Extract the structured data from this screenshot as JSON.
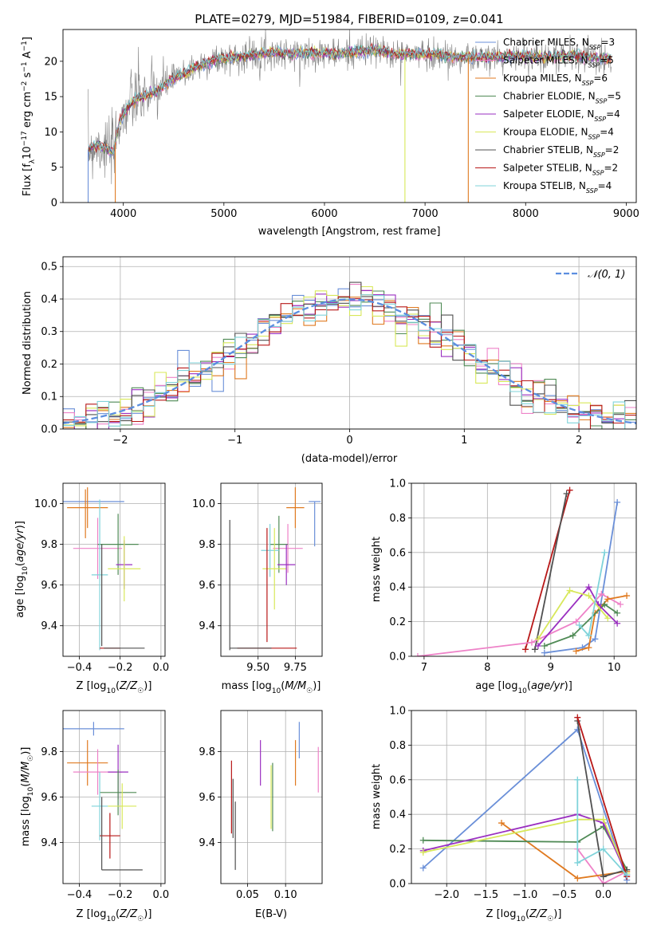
{
  "colors": {
    "Chabrier MILES": "#6a8fd8",
    "Salpeter MILES": "#ee82c8",
    "Kroupa MILES": "#e07a20",
    "Chabrier ELODIE": "#4f8a55",
    "Salpeter ELODIE": "#9a2fc0",
    "Kroupa ELODIE": "#d8e85a",
    "Chabrier STELIB": "#505050",
    "Salpeter STELIB": "#b81818",
    "Kroupa STELIB": "#7fd3da",
    "normal": "#5b8ee0"
  },
  "chart_data": [
    {
      "id": "spectrum",
      "type": "line",
      "title": "PLATE=0279, MJD=51984, FIBERID=0109, z=0.041",
      "xlabel": "wavelength [Angstrom, rest frame]",
      "ylabel": "Flux [f_λ10^-17 erg cm^-2 s^-1 A^-1]",
      "xlim": [
        3400,
        9100
      ],
      "ylim": [
        0,
        24.5
      ],
      "xticks": [
        "4000",
        "5000",
        "6000",
        "7000",
        "8000",
        "9000"
      ],
      "yticks": [
        "0",
        "5",
        "10",
        "15",
        "20"
      ],
      "legend_position": "right",
      "legend": [
        {
          "model": "Chabrier MILES",
          "label": "Chabrier MILES, N",
          "n": "=3"
        },
        {
          "model": "Salpeter MILES",
          "label": "Salpeter MILES, N",
          "n": "=5"
        },
        {
          "model": "Kroupa MILES",
          "label": "Kroupa MILES, N",
          "n": "=6"
        },
        {
          "model": "Chabrier ELODIE",
          "label": "Chabrier ELODIE, N",
          "n": "=5"
        },
        {
          "model": "Salpeter ELODIE",
          "label": "Salpeter ELODIE, N",
          "n": "=4"
        },
        {
          "model": "Kroupa ELODIE",
          "label": "Kroupa ELODIE, N",
          "n": "=4"
        },
        {
          "model": "Chabrier STELIB",
          "label": "Chabrier STELIB, N",
          "n": "=2"
        },
        {
          "model": "Salpeter STELIB",
          "label": "Salpeter STELIB, N",
          "n": "=2"
        },
        {
          "model": "Kroupa STELIB",
          "label": "Kroupa STELIB, N",
          "n": "=4"
        }
      ],
      "legend_subscript": "SSP",
      "continuum": [
        [
          3650,
          7.5
        ],
        [
          3750,
          8.2
        ],
        [
          3900,
          7.0
        ],
        [
          3960,
          11.5
        ],
        [
          4100,
          14.5
        ],
        [
          4300,
          15.5
        ],
        [
          4500,
          17.5
        ],
        [
          4700,
          19.0
        ],
        [
          4900,
          20.2
        ],
        [
          5100,
          20.5
        ],
        [
          5300,
          21.0
        ],
        [
          5500,
          21.3
        ],
        [
          5700,
          21.0
        ],
        [
          5900,
          21.3
        ],
        [
          6100,
          21.0
        ],
        [
          6300,
          21.3
        ],
        [
          6500,
          21.6
        ],
        [
          6700,
          21.0
        ],
        [
          6900,
          21.0
        ],
        [
          7100,
          21.0
        ],
        [
          7300,
          20.6
        ],
        [
          7500,
          20.5
        ],
        [
          7700,
          20.5
        ],
        [
          7900,
          20.8
        ],
        [
          8100,
          20.6
        ],
        [
          8300,
          20.7
        ],
        [
          8500,
          20.8
        ],
        [
          8700,
          20.5
        ],
        [
          8850,
          20.4
        ]
      ],
      "dips": [
        {
          "model": "Kroupa MILES",
          "x": 3920,
          "y": 0
        },
        {
          "model": "Kroupa ELODIE",
          "x": 6800,
          "y": 0
        },
        {
          "model": "Kroupa MILES",
          "x": 7430,
          "y": 0
        },
        {
          "model": "Chabrier MILES",
          "x": 3650,
          "y": 0
        }
      ]
    },
    {
      "id": "residuals",
      "type": "histogram",
      "xlabel": "(data-model)/error",
      "ylabel": "Normed distribution",
      "xlim": [
        -2.5,
        2.5
      ],
      "ylim": [
        0,
        0.53
      ],
      "xticks": [
        "−2",
        "−1",
        "0",
        "1",
        "2"
      ],
      "yticks": [
        "0.0",
        "0.1",
        "0.2",
        "0.3",
        "0.4",
        "0.5"
      ],
      "grid": true,
      "bin_width": 0.1,
      "legend_position": "top-right",
      "normal_label": "𝒩(0, 1)"
    },
    {
      "id": "z-age",
      "type": "errorbar",
      "xlabel": "Z [log10(Z/Z☉)]",
      "ylabel": "age [log10(age/yr)]",
      "xlim": [
        -0.48,
        0.02
      ],
      "ylim": [
        9.25,
        10.1
      ],
      "xticks": [
        "−0.4",
        "−0.2",
        "0.0"
      ],
      "yticks": [
        "9.4",
        "9.6",
        "9.8",
        "10.0"
      ],
      "grid": true,
      "points": [
        {
          "model": "Chabrier MILES",
          "x": -0.33,
          "xerr": 0.15,
          "y": 10.01,
          "yerr": 0.0
        },
        {
          "model": "Kroupa MILES",
          "x": -0.36,
          "xerr": 0.1,
          "y": 9.98,
          "yerr": 0.1
        },
        {
          "model": "Kroupa MILES",
          "x": -0.37,
          "xerr": 0.0,
          "y": 9.95,
          "yerr": 0.12
        },
        {
          "model": "Salpeter MILES",
          "x": -0.31,
          "xerr": 0.12,
          "y": 9.78,
          "yerr": 0.15
        },
        {
          "model": "Chabrier ELODIE",
          "x": -0.21,
          "xerr": 0.1,
          "y": 9.8,
          "yerr": 0.15
        },
        {
          "model": "Kroupa STELIB",
          "x": -0.3,
          "xerr": 0.04,
          "y": 9.65,
          "yerr": 0.37
        },
        {
          "model": "Salpeter ELODIE",
          "x": -0.18,
          "xerr": 0.04,
          "y": 9.7,
          "yerr": 0.12
        },
        {
          "model": "Kroupa ELODIE",
          "x": -0.18,
          "xerr": 0.08,
          "y": 9.68,
          "yerr": 0.16
        },
        {
          "model": "Salpeter STELIB",
          "x": -0.25,
          "xerr": 0.05,
          "y": 9.29,
          "yerr": 0.0
        },
        {
          "model": "Chabrier STELIB",
          "x": -0.18,
          "xerr": 0.1,
          "y": 9.29,
          "yerr": 0.0
        },
        {
          "model": "Chabrier STELIB",
          "x": -0.29,
          "xerr": 0.0,
          "y": 9.55,
          "yerr": 0.25
        }
      ]
    },
    {
      "id": "mass-age",
      "type": "errorbar",
      "xlabel": "mass [log10(M/M☉)]",
      "xlim": [
        9.25,
        9.93
      ],
      "ylim": [
        9.25,
        10.1
      ],
      "xticks": [
        "9.50",
        "9.75"
      ],
      "yticks": [
        "9.4",
        "9.6",
        "9.8",
        "10.0"
      ],
      "grid": true,
      "points": [
        {
          "model": "Chabrier MILES",
          "x": 9.88,
          "xerr": 0.04,
          "y": 10.01,
          "yerr": 0.0
        },
        {
          "model": "Chabrier MILES",
          "x": 9.88,
          "xerr": 0.0,
          "y": 9.9,
          "yerr": 0.11
        },
        {
          "model": "Kroupa MILES",
          "x": 9.75,
          "xerr": 0.06,
          "y": 9.98,
          "yerr": 0.1
        },
        {
          "model": "Salpeter MILES",
          "x": 9.7,
          "xerr": 0.1,
          "y": 9.78,
          "yerr": 0.12
        },
        {
          "model": "Chabrier ELODIE",
          "x": 9.64,
          "xerr": 0.06,
          "y": 9.8,
          "yerr": 0.14
        },
        {
          "model": "Kroupa STELIB",
          "x": 9.58,
          "xerr": 0.06,
          "y": 9.77,
          "yerr": 0.13
        },
        {
          "model": "Kroupa ELODIE",
          "x": 9.61,
          "xerr": 0.08,
          "y": 9.68,
          "yerr": 0.2
        },
        {
          "model": "Salpeter ELODIE",
          "x": 9.69,
          "xerr": 0.06,
          "y": 9.7,
          "yerr": 0.1
        },
        {
          "model": "Salpeter STELIB",
          "x": 9.56,
          "xerr": 0.2,
          "y": 9.29,
          "yerr": 0.0
        },
        {
          "model": "Salpeter STELIB",
          "x": 9.56,
          "xerr": 0.0,
          "y": 9.6,
          "yerr": 0.28
        },
        {
          "model": "Chabrier STELIB",
          "x": 9.31,
          "xerr": 0.0,
          "y": 9.6,
          "yerr": 0.32
        },
        {
          "model": "Chabrier STELIB",
          "x": 9.45,
          "xerr": 0.14,
          "y": 9.29,
          "yerr": 0.0
        }
      ]
    },
    {
      "id": "age-weight",
      "type": "line",
      "xlabel": "age [log10(age/yr)]",
      "ylabel": "mass weight",
      "xlim": [
        6.8,
        10.35
      ],
      "ylim": [
        0,
        1.0
      ],
      "xticks": [
        "7",
        "8",
        "9",
        "10"
      ],
      "yticks": [
        "0.0",
        "0.2",
        "0.4",
        "0.6",
        "0.8",
        "1.0"
      ],
      "grid": true,
      "series": [
        {
          "model": "Salpeter STELIB",
          "points": [
            [
              8.6,
              0.04
            ],
            [
              9.3,
              0.96
            ]
          ]
        },
        {
          "model": "Chabrier STELIB",
          "points": [
            [
              8.75,
              0.04
            ],
            [
              9.25,
              0.94
            ]
          ]
        },
        {
          "model": "Chabrier MILES",
          "points": [
            [
              8.9,
              0.02
            ],
            [
              9.5,
              0.05
            ],
            [
              9.7,
              0.1
            ],
            [
              10.05,
              0.89
            ]
          ]
        },
        {
          "model": "Salpeter MILES",
          "points": [
            [
              6.9,
              0.0
            ],
            [
              8.7,
              0.08
            ],
            [
              9.4,
              0.2
            ],
            [
              9.8,
              0.36
            ],
            [
              10.1,
              0.3
            ]
          ]
        },
        {
          "model": "Kroupa MILES",
          "points": [
            [
              9.4,
              0.03
            ],
            [
              9.6,
              0.05
            ],
            [
              9.7,
              0.25
            ],
            [
              9.9,
              0.33
            ],
            [
              10.2,
              0.35
            ]
          ]
        },
        {
          "model": "Chabrier ELODIE",
          "points": [
            [
              8.9,
              0.06
            ],
            [
              9.35,
              0.12
            ],
            [
              9.85,
              0.3
            ],
            [
              10.05,
              0.25
            ]
          ]
        },
        {
          "model": "Salpeter ELODIE",
          "points": [
            [
              8.8,
              0.06
            ],
            [
              9.6,
              0.4
            ],
            [
              9.75,
              0.3
            ],
            [
              10.05,
              0.19
            ]
          ]
        },
        {
          "model": "Kroupa ELODIE",
          "points": [
            [
              8.8,
              0.1
            ],
            [
              9.3,
              0.38
            ],
            [
              9.6,
              0.35
            ],
            [
              9.9,
              0.22
            ]
          ]
        },
        {
          "model": "Kroupa STELIB",
          "points": [
            [
              9.45,
              0.18
            ],
            [
              9.6,
              0.12
            ],
            [
              9.85,
              0.6
            ]
          ]
        }
      ]
    },
    {
      "id": "z-mass",
      "type": "errorbar",
      "xlabel": "Z [log10(Z/Z☉)]",
      "ylabel": "mass [log10(M/M☉)]",
      "xlim": [
        -0.48,
        0.02
      ],
      "ylim": [
        9.22,
        9.98
      ],
      "xticks": [
        "−0.4",
        "−0.2",
        "0.0"
      ],
      "yticks": [
        "9.4",
        "9.6",
        "9.8"
      ],
      "grid": true,
      "points": [
        {
          "model": "Chabrier MILES",
          "x": -0.33,
          "xerr": 0.15,
          "y": 9.9,
          "yerr": 0.03
        },
        {
          "model": "Kroupa MILES",
          "x": -0.36,
          "xerr": 0.1,
          "y": 9.75,
          "yerr": 0.1
        },
        {
          "model": "Salpeter MILES",
          "x": -0.31,
          "xerr": 0.12,
          "y": 9.71,
          "yerr": 0.1
        },
        {
          "model": "Salpeter ELODIE",
          "x": -0.21,
          "xerr": 0.05,
          "y": 9.71,
          "yerr": 0.12
        },
        {
          "model": "Chabrier ELODIE",
          "x": -0.21,
          "xerr": 0.09,
          "y": 9.62,
          "yerr": 0.1
        },
        {
          "model": "Kroupa ELODIE",
          "x": -0.19,
          "xerr": 0.07,
          "y": 9.56,
          "yerr": 0.1
        },
        {
          "model": "Kroupa STELIB",
          "x": -0.3,
          "xerr": 0.04,
          "y": 9.56,
          "yerr": 0.15
        },
        {
          "model": "Salpeter STELIB",
          "x": -0.25,
          "xerr": 0.05,
          "y": 9.43,
          "yerr": 0.1
        },
        {
          "model": "Chabrier STELIB",
          "x": -0.19,
          "xerr": 0.1,
          "y": 9.28,
          "yerr": 0.0
        },
        {
          "model": "Chabrier STELIB",
          "x": -0.29,
          "xerr": 0.0,
          "y": 9.44,
          "yerr": 0.16
        }
      ]
    },
    {
      "id": "ebv-mass",
      "type": "errorbar",
      "xlabel": "E(B-V)",
      "xlim": [
        0.015,
        0.148
      ],
      "ylim": [
        9.22,
        9.98
      ],
      "xticks": [
        "0.05",
        "0.10"
      ],
      "yticks": [
        "9.4",
        "9.6",
        "9.8"
      ],
      "grid": true,
      "points": [
        {
          "model": "Salpeter STELIB",
          "x": 0.029,
          "xerr": 0.0,
          "y": 9.6,
          "yerr": 0.16
        },
        {
          "model": "Chabrier STELIB",
          "x": 0.031,
          "xerr": 0.0,
          "y": 9.55,
          "yerr": 0.13
        },
        {
          "model": "Chabrier STELIB",
          "x": 0.034,
          "xerr": 0.0,
          "y": 9.43,
          "yerr": 0.15
        },
        {
          "model": "Salpeter ELODIE",
          "x": 0.067,
          "xerr": 0.0,
          "y": 9.75,
          "yerr": 0.1
        },
        {
          "model": "Kroupa ELODIE",
          "x": 0.081,
          "xerr": 0.0,
          "y": 9.6,
          "yerr": 0.14
        },
        {
          "model": "Chabrier ELODIE",
          "x": 0.083,
          "xerr": 0.0,
          "y": 9.6,
          "yerr": 0.15
        },
        {
          "model": "Kroupa MILES",
          "x": 0.113,
          "xerr": 0.0,
          "y": 9.75,
          "yerr": 0.1
        },
        {
          "model": "Chabrier MILES",
          "x": 0.118,
          "xerr": 0.0,
          "y": 9.85,
          "yerr": 0.08
        },
        {
          "model": "Salpeter MILES",
          "x": 0.143,
          "xerr": 0.0,
          "y": 9.72,
          "yerr": 0.1
        }
      ]
    },
    {
      "id": "z-weight",
      "type": "line",
      "xlabel": "Z [log10(Z/Z☉)]",
      "ylabel": "mass weight",
      "xlim": [
        -2.45,
        0.42
      ],
      "ylim": [
        0,
        1.0
      ],
      "xticks": [
        "−2.0",
        "−1.5",
        "−1.0",
        "−0.5",
        "0.0"
      ],
      "yticks": [
        "0.0",
        "0.2",
        "0.4",
        "0.6",
        "0.8",
        "1.0"
      ],
      "grid": true,
      "series": [
        {
          "model": "Chabrier MILES",
          "points": [
            [
              -2.3,
              0.09
            ],
            [
              -0.33,
              0.89
            ],
            [
              0.3,
              0.02
            ]
          ]
        },
        {
          "model": "Salpeter MILES",
          "points": [
            [
              -0.33,
              0.2
            ],
            [
              0.0,
              0.0
            ],
            [
              0.3,
              0.07
            ]
          ]
        },
        {
          "model": "Kroupa MILES",
          "points": [
            [
              -1.3,
              0.35
            ],
            [
              -0.33,
              0.03
            ],
            [
              0.3,
              0.07
            ]
          ]
        },
        {
          "model": "Chabrier ELODIE",
          "points": [
            [
              -2.3,
              0.25
            ],
            [
              -0.33,
              0.24
            ],
            [
              0.0,
              0.33
            ],
            [
              0.3,
              0.08
            ]
          ]
        },
        {
          "model": "Salpeter ELODIE",
          "points": [
            [
              -2.3,
              0.19
            ],
            [
              -0.33,
              0.4
            ],
            [
              0.0,
              0.35
            ],
            [
              0.3,
              0.05
            ]
          ]
        },
        {
          "model": "Kroupa ELODIE",
          "points": [
            [
              -2.3,
              0.18
            ],
            [
              -0.33,
              0.37
            ],
            [
              0.0,
              0.37
            ],
            [
              0.3,
              0.06
            ]
          ]
        },
        {
          "model": "Chabrier STELIB",
          "points": [
            [
              -0.33,
              0.94
            ],
            [
              0.0,
              0.04
            ],
            [
              0.3,
              0.08
            ]
          ]
        },
        {
          "model": "Salpeter STELIB",
          "points": [
            [
              -0.33,
              0.96
            ],
            [
              0.3,
              0.04
            ]
          ]
        },
        {
          "model": "Kroupa STELIB",
          "points": [
            [
              -0.33,
              0.6
            ],
            [
              -0.33,
              0.12
            ],
            [
              0.0,
              0.2
            ],
            [
              0.3,
              0.05
            ]
          ]
        }
      ]
    }
  ]
}
